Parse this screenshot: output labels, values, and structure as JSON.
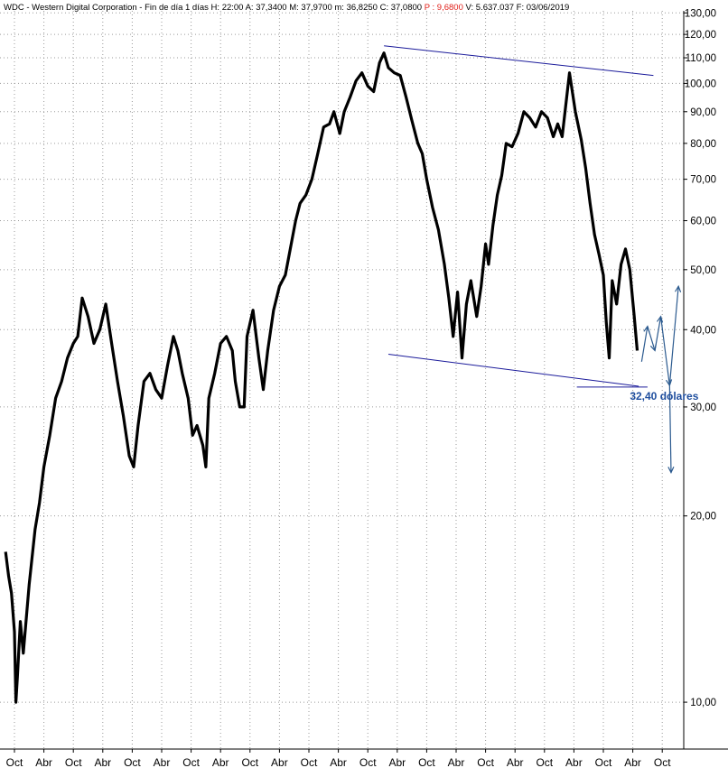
{
  "header": {
    "symbol": "WDC",
    "name": "Western Digital Corporation",
    "period": "Fin de día 1 días",
    "h_label": "H:",
    "h_value": "22:00",
    "a_label": "A:",
    "a_value": "37,3400",
    "max_label": "M:",
    "max_value": "37,9700",
    "min_label": "m:",
    "min_value": "36,8250",
    "close_label": "C:",
    "close_value": "37,0800",
    "p_label": "P :",
    "p_value": "9,6800",
    "v_label": "V:",
    "v_value": "5.637.037",
    "date_label": "F:",
    "date_value": "03/06/2019"
  },
  "colors": {
    "price": "#000000",
    "lines": "#1a1a9a",
    "arrows": "#2b5a8f",
    "annotation": "#1f4e9e",
    "p_value": "#e0201a"
  },
  "chart_data": {
    "type": "line",
    "title": "WDC - Western Digital Corporation - Fin de día 1 días",
    "y_scale": "log",
    "ylim": [
      8.4,
      131
    ],
    "y_ticks": [
      {
        "value": 10,
        "label": "10,00"
      },
      {
        "value": 20,
        "label": "20,00"
      },
      {
        "value": 30,
        "label": "30,00"
      },
      {
        "value": 40,
        "label": "40,00"
      },
      {
        "value": 50,
        "label": "50,00"
      },
      {
        "value": 60,
        "label": "60,00"
      },
      {
        "value": 70,
        "label": "70,00"
      },
      {
        "value": 80,
        "label": "80,00"
      },
      {
        "value": 90,
        "label": "90,00"
      },
      {
        "value": 100,
        "label": "100,00"
      },
      {
        "value": 110,
        "label": "110,00"
      },
      {
        "value": 120,
        "label": "120,00"
      },
      {
        "value": 130,
        "label": "130,00"
      }
    ],
    "x_ticks": [
      "Oct",
      "Abr",
      "Oct",
      "Abr",
      "Oct",
      "Abr",
      "Oct",
      "Abr",
      "Oct",
      "Abr",
      "Oct",
      "Abr",
      "Oct",
      "Abr",
      "Oct",
      "Abr",
      "Oct",
      "Abr",
      "Oct",
      "Abr",
      "Oct",
      "Abr",
      "Oct"
    ],
    "x_range": [
      0,
      22.5
    ],
    "grid": true,
    "series": [
      {
        "points": [
          [
            -0.3,
            17.5
          ],
          [
            -0.2,
            16
          ],
          [
            -0.1,
            15
          ],
          [
            0,
            13
          ],
          [
            0.05,
            10
          ],
          [
            0.1,
            11
          ],
          [
            0.2,
            13.5
          ],
          [
            0.3,
            12
          ],
          [
            0.5,
            15.5
          ],
          [
            0.7,
            19
          ],
          [
            0.85,
            21
          ],
          [
            1,
            24
          ],
          [
            1.2,
            27
          ],
          [
            1.4,
            31
          ],
          [
            1.6,
            33
          ],
          [
            1.8,
            36
          ],
          [
            2,
            38
          ],
          [
            2.15,
            39
          ],
          [
            2.3,
            45
          ],
          [
            2.5,
            42
          ],
          [
            2.7,
            38
          ],
          [
            2.9,
            40
          ],
          [
            3.1,
            44
          ],
          [
            3.3,
            38
          ],
          [
            3.5,
            33
          ],
          [
            3.7,
            29
          ],
          [
            3.9,
            25
          ],
          [
            4.05,
            24
          ],
          [
            4.2,
            28
          ],
          [
            4.4,
            33
          ],
          [
            4.6,
            34
          ],
          [
            4.8,
            32
          ],
          [
            5,
            31
          ],
          [
            5.2,
            35
          ],
          [
            5.4,
            39
          ],
          [
            5.55,
            37
          ],
          [
            5.7,
            34
          ],
          [
            5.9,
            31
          ],
          [
            6.05,
            27
          ],
          [
            6.2,
            28
          ],
          [
            6.4,
            26
          ],
          [
            6.5,
            24
          ],
          [
            6.6,
            31
          ],
          [
            6.8,
            34
          ],
          [
            7,
            38
          ],
          [
            7.2,
            39
          ],
          [
            7.4,
            37
          ],
          [
            7.5,
            33
          ],
          [
            7.65,
            30
          ],
          [
            7.8,
            30
          ],
          [
            7.9,
            39
          ],
          [
            8.1,
            43
          ],
          [
            8.3,
            36
          ],
          [
            8.45,
            32
          ],
          [
            8.6,
            37
          ],
          [
            8.8,
            43
          ],
          [
            9,
            47
          ],
          [
            9.2,
            49
          ],
          [
            9.4,
            55
          ],
          [
            9.55,
            60
          ],
          [
            9.7,
            64
          ],
          [
            9.9,
            66
          ],
          [
            10.1,
            70
          ],
          [
            10.3,
            77
          ],
          [
            10.5,
            85
          ],
          [
            10.7,
            86
          ],
          [
            10.85,
            90
          ],
          [
            11.05,
            83
          ],
          [
            11.2,
            90
          ],
          [
            11.4,
            95
          ],
          [
            11.6,
            101
          ],
          [
            11.8,
            104
          ],
          [
            12,
            99
          ],
          [
            12.2,
            97
          ],
          [
            12.4,
            108
          ],
          [
            12.55,
            112
          ],
          [
            12.7,
            106
          ],
          [
            12.9,
            104
          ],
          [
            13.1,
            103
          ],
          [
            13.3,
            95
          ],
          [
            13.5,
            87
          ],
          [
            13.7,
            80
          ],
          [
            13.85,
            77
          ],
          [
            14,
            70
          ],
          [
            14.2,
            63
          ],
          [
            14.4,
            58
          ],
          [
            14.6,
            51
          ],
          [
            14.75,
            45
          ],
          [
            14.9,
            39
          ],
          [
            15.05,
            46
          ],
          [
            15.2,
            36
          ],
          [
            15.35,
            44
          ],
          [
            15.5,
            48
          ],
          [
            15.7,
            42
          ],
          [
            15.85,
            47
          ],
          [
            16,
            55
          ],
          [
            16.1,
            51
          ],
          [
            16.25,
            59
          ],
          [
            16.4,
            66
          ],
          [
            16.55,
            71
          ],
          [
            16.7,
            80
          ],
          [
            16.9,
            79
          ],
          [
            17.1,
            83
          ],
          [
            17.3,
            90
          ],
          [
            17.5,
            88
          ],
          [
            17.7,
            85
          ],
          [
            17.9,
            90
          ],
          [
            18.1,
            88
          ],
          [
            18.3,
            82
          ],
          [
            18.45,
            86
          ],
          [
            18.6,
            82
          ],
          [
            18.85,
            104
          ],
          [
            19.05,
            90
          ],
          [
            19.25,
            81
          ],
          [
            19.4,
            73
          ],
          [
            19.55,
            64
          ],
          [
            19.7,
            57
          ],
          [
            19.85,
            53
          ],
          [
            20,
            49
          ],
          [
            20.1,
            41
          ],
          [
            20.2,
            36
          ],
          [
            20.3,
            48
          ],
          [
            20.45,
            44
          ],
          [
            20.6,
            51
          ],
          [
            20.75,
            54
          ],
          [
            20.9,
            50
          ],
          [
            21.05,
            42
          ],
          [
            21.15,
            37
          ]
        ]
      }
    ],
    "trendlines": [
      {
        "from": [
          12.55,
          115
        ],
        "to": [
          21.7,
          103
        ]
      },
      {
        "from": [
          12.7,
          36.5
        ],
        "to": [
          21.2,
          32.4
        ]
      },
      {
        "from": [
          19.1,
          32.3
        ],
        "to": [
          21.5,
          32.3
        ]
      }
    ],
    "projection": [
      [
        21.3,
        35.5
      ],
      [
        21.5,
        40.5
      ],
      [
        21.75,
        37
      ],
      [
        21.95,
        42
      ],
      [
        22.25,
        32.5
      ],
      [
        22.55,
        47
      ]
    ],
    "projection_down": [
      [
        22.25,
        32.5
      ],
      [
        22.3,
        23.5
      ]
    ],
    "annotations": [
      {
        "text": "32,40 dólares",
        "at": [
          20.9,
          30.8
        ]
      }
    ]
  }
}
